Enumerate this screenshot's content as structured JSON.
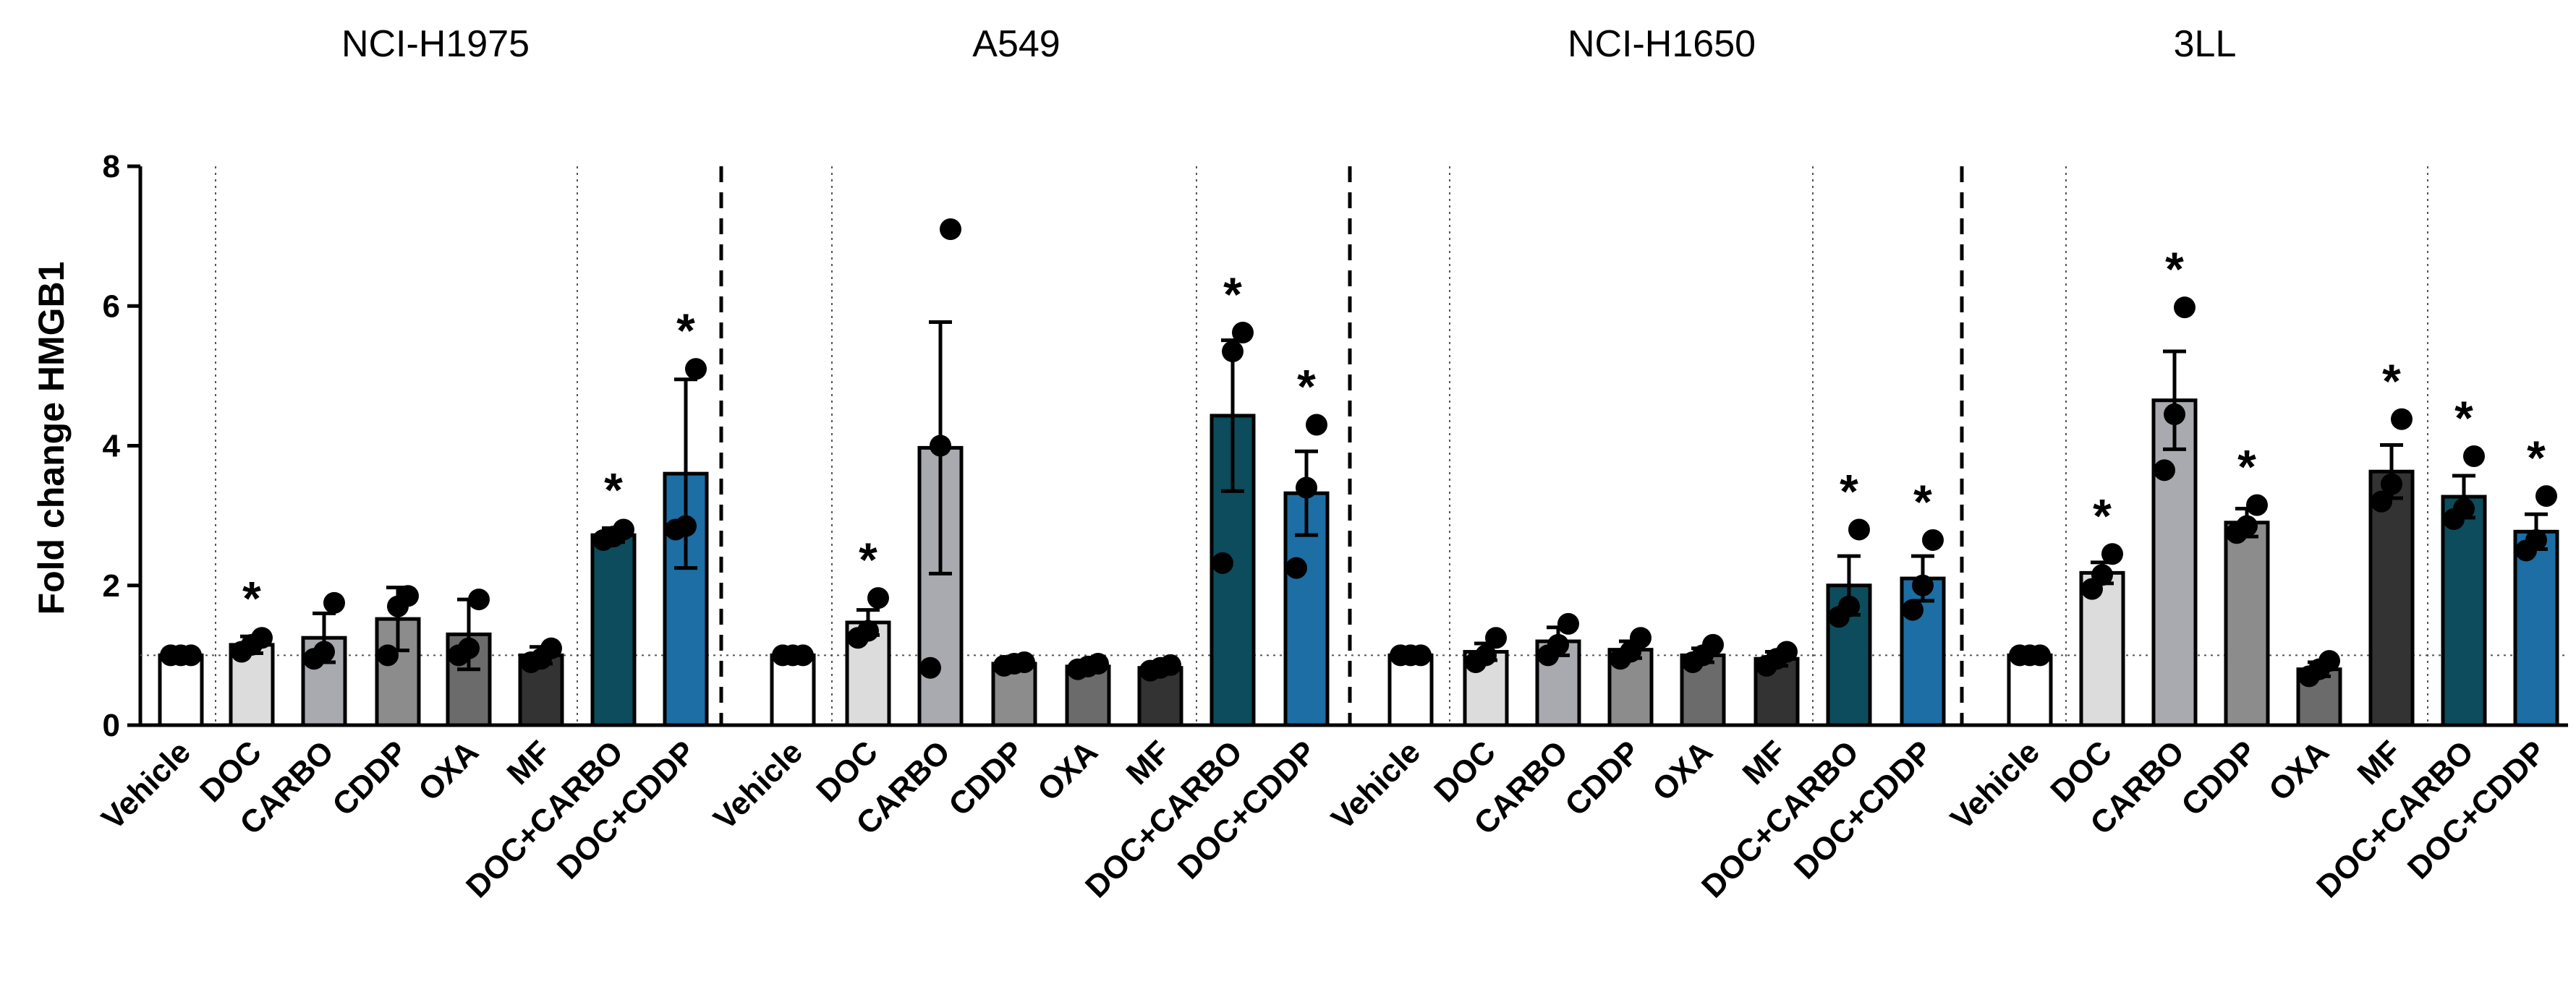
{
  "chart_data": {
    "type": "bar",
    "ylabel": "Fold change HMGB1",
    "ylim": [
      0,
      8
    ],
    "yticks": [
      0,
      2,
      4,
      6,
      8
    ],
    "reference_line": 1,
    "categories": [
      "Vehicle",
      "DOC",
      "CARBO",
      "CDDP",
      "OXA",
      "MF",
      "DOC+CARBO",
      "DOC+CDDP"
    ],
    "colors": {
      "Vehicle": "#ffffff",
      "DOC": "#dcdcdc",
      "CARBO": "#a9a9b0",
      "CDDP": "#8c8c8c",
      "OXA": "#6b6b6b",
      "MF": "#333333",
      "DOC+CARBO": "#0d4c5c",
      "DOC+CDDP": "#1c6ea4"
    },
    "significance_marker": "*",
    "panels": [
      {
        "title": "NCI-H1975",
        "values": [
          1.0,
          1.15,
          1.25,
          1.52,
          1.3,
          1.0,
          2.72,
          3.6
        ],
        "errors": [
          0.0,
          0.12,
          0.35,
          0.45,
          0.5,
          0.12,
          0.1,
          1.35
        ],
        "points": [
          [
            1.0,
            1.0,
            1.0
          ],
          [
            1.05,
            1.15,
            1.25
          ],
          [
            0.95,
            1.05,
            1.75
          ],
          [
            1.0,
            1.7,
            1.85
          ],
          [
            1.0,
            1.1,
            1.8
          ],
          [
            0.9,
            0.95,
            1.1
          ],
          [
            2.65,
            2.7,
            2.8
          ],
          [
            2.8,
            2.85,
            5.1
          ]
        ],
        "significant": [
          false,
          true,
          false,
          false,
          false,
          false,
          true,
          true
        ]
      },
      {
        "title": "A549",
        "values": [
          1.0,
          1.47,
          3.97,
          0.88,
          0.84,
          0.82,
          4.43,
          3.32
        ],
        "errors": [
          0.0,
          0.18,
          1.8,
          0.04,
          0.05,
          0.05,
          1.08,
          0.6
        ],
        "points": [
          [
            1.0,
            1.0,
            1.0
          ],
          [
            1.25,
            1.35,
            1.82
          ],
          [
            0.82,
            4.0,
            7.1
          ],
          [
            0.85,
            0.88,
            0.9
          ],
          [
            0.8,
            0.84,
            0.88
          ],
          [
            0.78,
            0.82,
            0.86
          ],
          [
            2.32,
            5.35,
            5.62
          ],
          [
            2.25,
            3.4,
            4.3
          ]
        ],
        "significant": [
          false,
          true,
          false,
          false,
          false,
          false,
          true,
          true
        ]
      },
      {
        "title": "NCI-H1650",
        "values": [
          1.0,
          1.05,
          1.2,
          1.08,
          1.0,
          0.95,
          2.0,
          2.1
        ],
        "errors": [
          0.0,
          0.12,
          0.2,
          0.12,
          0.1,
          0.1,
          0.42,
          0.32
        ],
        "points": [
          [
            1.0,
            1.0,
            1.0
          ],
          [
            0.9,
            1.0,
            1.25
          ],
          [
            1.0,
            1.15,
            1.45
          ],
          [
            0.95,
            1.05,
            1.25
          ],
          [
            0.9,
            1.0,
            1.15
          ],
          [
            0.85,
            0.95,
            1.05
          ],
          [
            1.55,
            1.7,
            2.8
          ],
          [
            1.65,
            2.0,
            2.65
          ]
        ],
        "significant": [
          false,
          false,
          false,
          false,
          false,
          false,
          true,
          true
        ]
      },
      {
        "title": "3LL",
        "values": [
          1.0,
          2.18,
          4.65,
          2.9,
          0.8,
          3.63,
          3.27,
          2.77
        ],
        "errors": [
          0.0,
          0.15,
          0.7,
          0.2,
          0.1,
          0.38,
          0.3,
          0.25
        ],
        "points": [
          [
            1.0,
            1.0,
            1.0
          ],
          [
            1.95,
            2.15,
            2.45
          ],
          [
            3.65,
            4.45,
            5.98
          ],
          [
            2.75,
            2.85,
            3.15
          ],
          [
            0.7,
            0.8,
            0.92
          ],
          [
            3.2,
            3.45,
            4.38
          ],
          [
            2.95,
            3.1,
            3.85
          ],
          [
            2.5,
            2.65,
            3.28
          ]
        ],
        "significant": [
          false,
          true,
          true,
          true,
          false,
          true,
          true,
          true
        ]
      }
    ]
  }
}
